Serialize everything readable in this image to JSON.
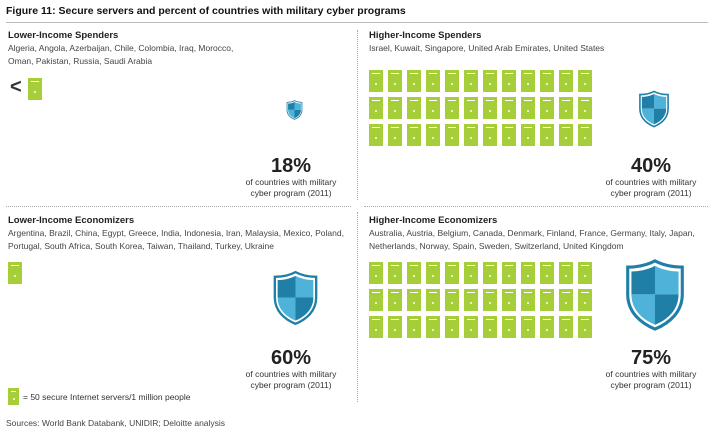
{
  "figure_title": "Figure 11: Secure servers and percent of countries with military cyber programs",
  "chart_data": [
    {
      "type": "pictogram",
      "quadrant": "Lower-Income Spenders",
      "countries": [
        "Algeria, Angola, Azerbaijan, Chile, Colombia, Iraq, Morocco,",
        "Oman, Pakistan, Russia, Saudi Arabia"
      ],
      "servers_prefix": "<",
      "server_icons": 1,
      "percent": 18,
      "percent_label": "18%",
      "caption": [
        "of countries with military",
        "cyber program (2011)"
      ]
    },
    {
      "type": "pictogram",
      "quadrant": "Higher-Income Spenders",
      "countries": [
        "Israel, Kuwait, Singapore, United Arab Emirates, United States",
        ""
      ],
      "servers_prefix": "",
      "server_icons": 36,
      "percent": 40,
      "percent_label": "40%",
      "caption": [
        "of countries with military",
        "cyber program (2011)"
      ]
    },
    {
      "type": "pictogram",
      "quadrant": "Lower-Income Economizers",
      "countries": [
        "Argentina, Brazil, China, Egypt, Greece, India, Indonesia, Iran, Malaysia, Mexico, Poland,",
        "Portugal, South Africa, South Korea, Taiwan, Thailand, Turkey, Ukraine"
      ],
      "servers_prefix": "",
      "server_icons": 1,
      "percent": 60,
      "percent_label": "60%",
      "caption": [
        "of countries with military",
        "cyber program (2011)"
      ]
    },
    {
      "type": "pictogram",
      "quadrant": "Higher-Income Economizers",
      "countries": [
        "Australia, Austria, Belgium, Canada, Denmark, Finland, France, Germany, Italy, Japan,",
        "Netherlands, Norway, Spain, Sweden, Switzerland, United Kingdom"
      ],
      "servers_prefix": "",
      "server_icons": 36,
      "percent": 75,
      "percent_label": "75%",
      "caption": [
        "of countries with military",
        "cyber program (2011)"
      ]
    }
  ],
  "legend": {
    "icon": "server-icon",
    "text": "= 50 secure Internet servers/1 million people"
  },
  "sources": "Sources: World Bank Databank, UNIDIR; Deloitte analysis",
  "colors": {
    "server": "#a6ce39",
    "shield_dark": "#1f7fa6",
    "shield_light": "#4fb3d9",
    "shield_outline": "#1f7fa6"
  }
}
